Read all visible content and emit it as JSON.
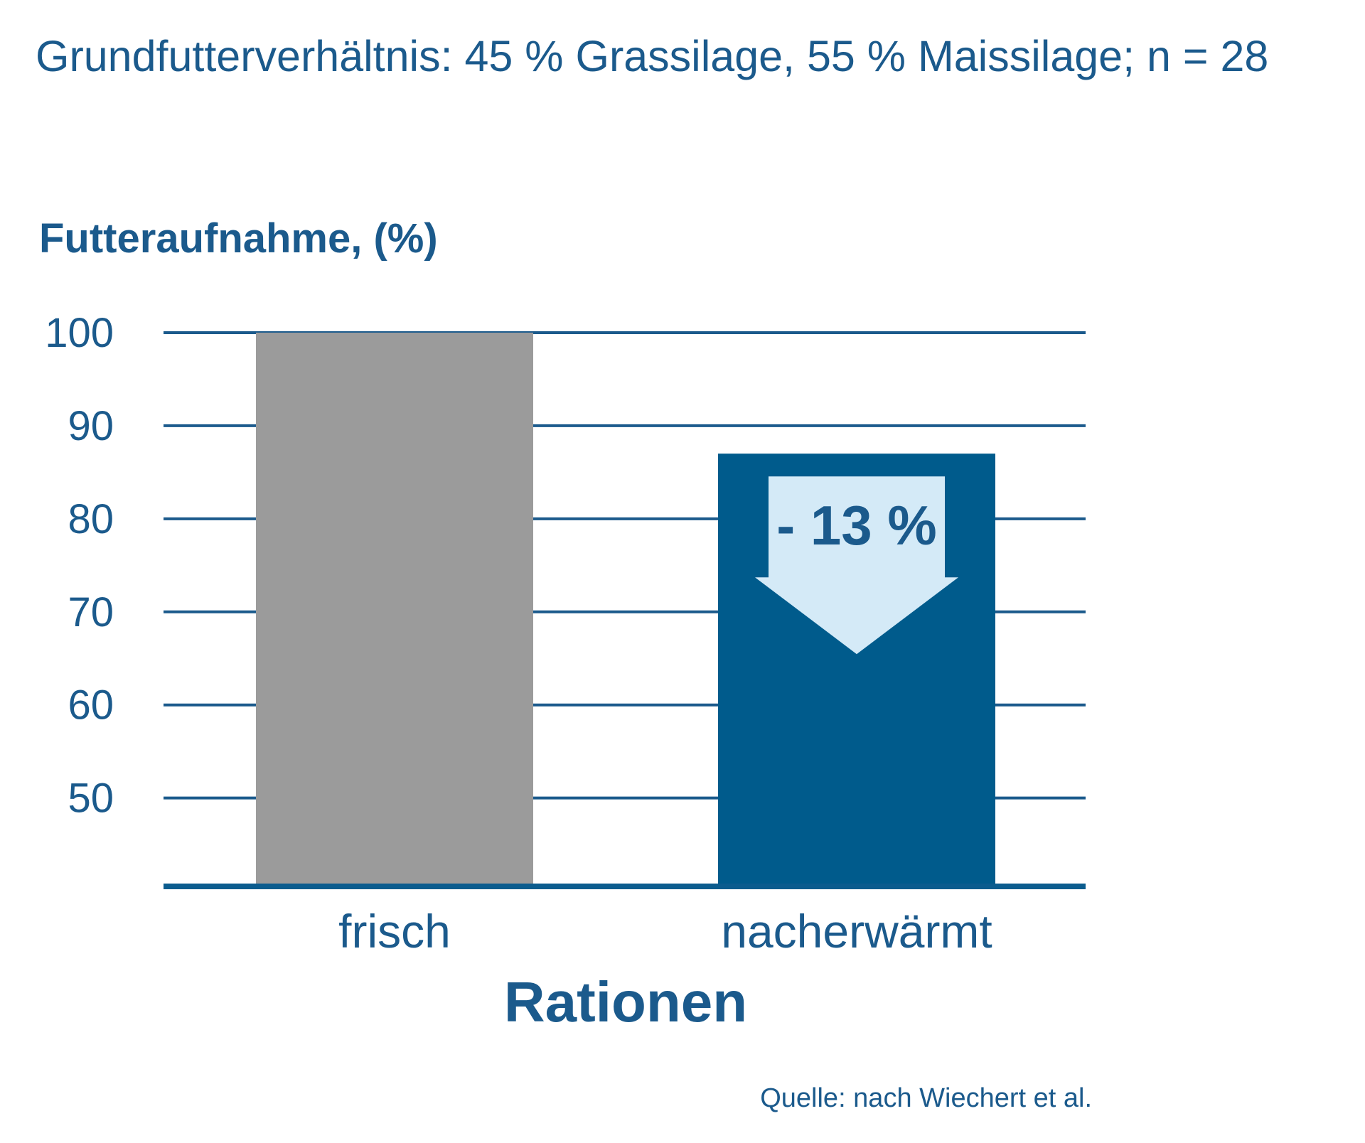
{
  "colors": {
    "text": "#1B5A8C",
    "grid": "#1B5A8C",
    "axis": "#0B5C8E",
    "bar_frisch": "#9B9B9B",
    "bar_nacherwaermt": "#005B8C",
    "arrow_fill": "#D4EAF7",
    "annotation_text": "#1B5A8C"
  },
  "header": {
    "subtitle": "Grundfutterverhältnis: 45 % Grassilage, 55 % Maissilage; n = 28"
  },
  "footer": {
    "source": "Quelle: nach Wiechert et al."
  },
  "chart_data": {
    "type": "bar",
    "title": "",
    "ylabel": "Futteraufnahme, (%)",
    "xlabel": "Rationen",
    "categories": [
      "frisch",
      "nacherwärmt"
    ],
    "values": [
      100,
      87
    ],
    "yticks": [
      50,
      60,
      70,
      80,
      90,
      100
    ],
    "ylim": [
      40.5,
      100
    ],
    "grid": true,
    "annotation": {
      "text": "- 13 %",
      "category": "nacherwärmt",
      "type": "down-arrow"
    }
  }
}
